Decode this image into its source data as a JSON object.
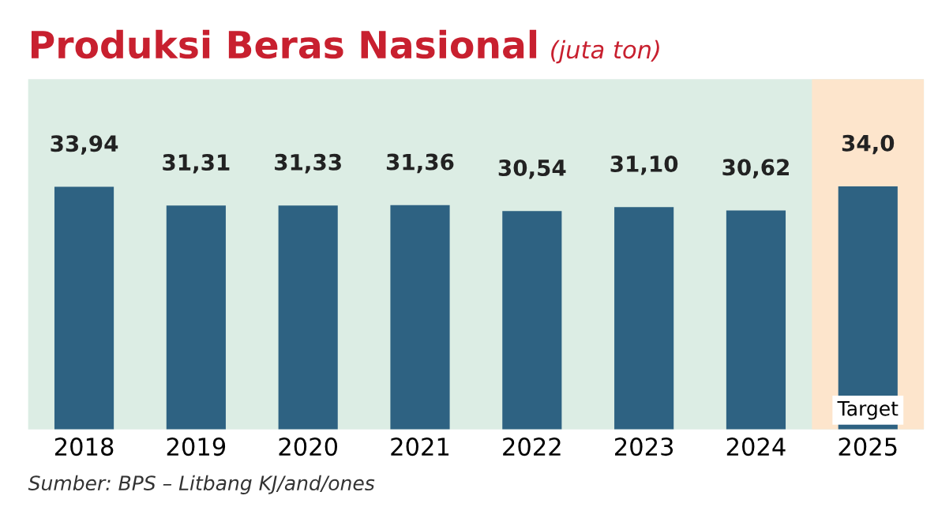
{
  "chart_data": {
    "type": "bar",
    "title": "Produksi Beras Nasional",
    "subtitle": "(juta ton)",
    "categories": [
      "2018",
      "2019",
      "2020",
      "2021",
      "2022",
      "2023",
      "2024",
      "2025"
    ],
    "values": [
      33.94,
      31.31,
      31.33,
      31.36,
      30.54,
      31.1,
      30.62,
      34.0
    ],
    "value_labels": [
      "33,94",
      "31,31",
      "31,33",
      "31,36",
      "30,54",
      "31,10",
      "30,62",
      "34,0"
    ],
    "color": "#2e6282",
    "ylim": [
      0,
      49
    ],
    "bands": [
      {
        "axis": "x",
        "from": "2025",
        "to": "2025",
        "label": "Target",
        "color": "#fde5cc"
      }
    ],
    "annotations": [
      "Sumber: BPS – Litbang KJ/and/ones"
    ],
    "grid": false,
    "legend": false,
    "tick_labels": "x"
  }
}
